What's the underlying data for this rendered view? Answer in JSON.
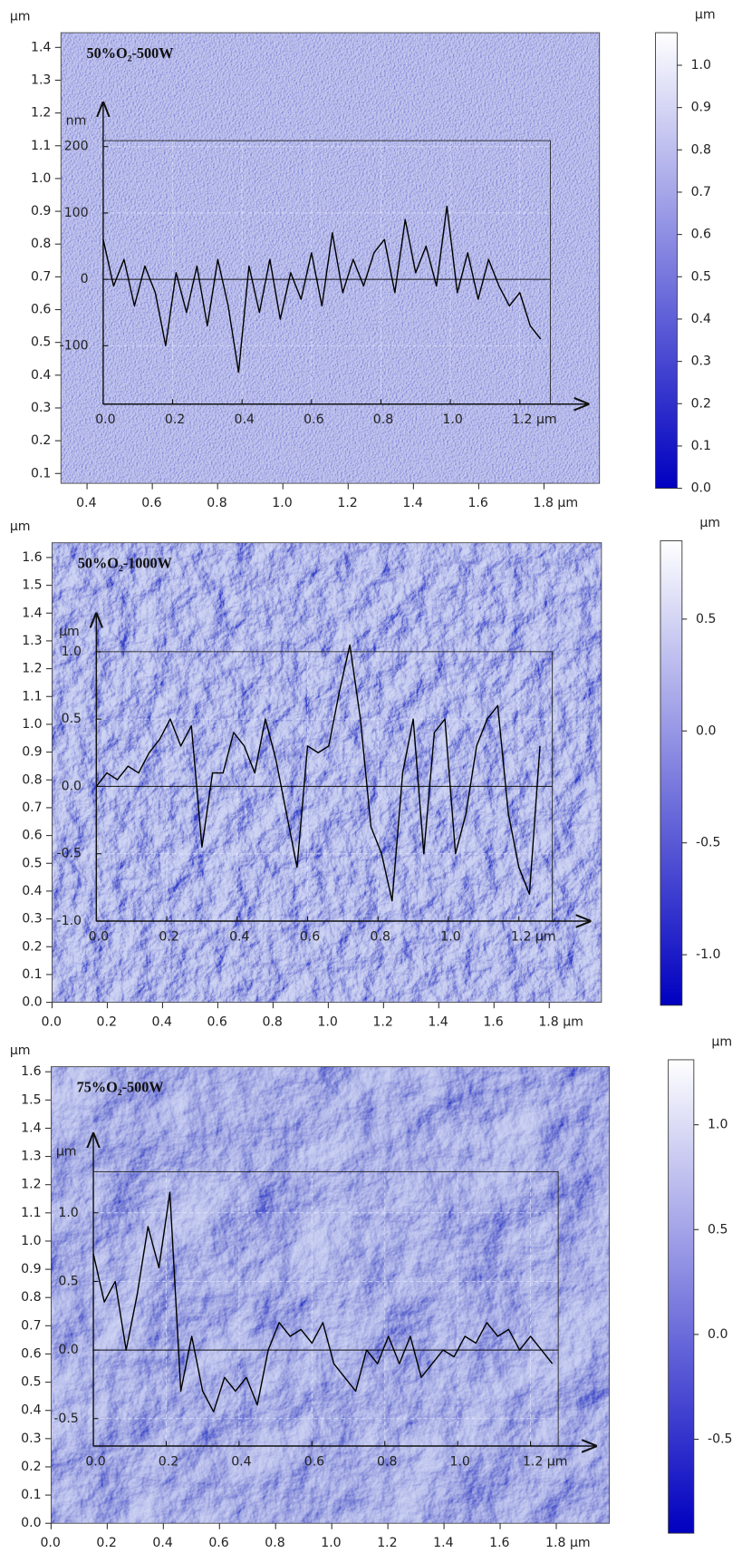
{
  "chart_data": [
    {
      "type": "line",
      "title": "50%O₂-500W",
      "y_label": "nm",
      "color": "#000000",
      "grid": true,
      "x": [
        0,
        0.03,
        0.06,
        0.09,
        0.12,
        0.15,
        0.18,
        0.21,
        0.24,
        0.27,
        0.3,
        0.33,
        0.36,
        0.39,
        0.42,
        0.45,
        0.48,
        0.51,
        0.54,
        0.57,
        0.6,
        0.63,
        0.66,
        0.69,
        0.72,
        0.75,
        0.78,
        0.81,
        0.84,
        0.87,
        0.9,
        0.93,
        0.96,
        0.99,
        1.02,
        1.05,
        1.08,
        1.11,
        1.14,
        1.17,
        1.2,
        1.23,
        1.26
      ],
      "values": [
        60,
        -10,
        30,
        -40,
        20,
        -20,
        -100,
        10,
        -50,
        20,
        -70,
        30,
        -40,
        -140,
        20,
        -50,
        30,
        -60,
        10,
        -30,
        40,
        -40,
        70,
        -20,
        30,
        -10,
        40,
        60,
        -20,
        90,
        10,
        50,
        -10,
        110,
        -20,
        40,
        -30,
        30,
        -10,
        -40,
        -20,
        -70,
        -90
      ],
      "xlim": [
        0,
        1.288
      ],
      "ylim": [
        -188,
        209
      ],
      "xticks": [
        {
          "value": 0,
          "label": "0.0"
        },
        0.2,
        0.4,
        0.6,
        0.8,
        {
          "value": 1,
          "label": "1.0"
        },
        {
          "value": 1.2,
          "label": "1.2 µm"
        }
      ],
      "yticks": [
        200,
        100,
        0,
        -100
      ],
      "image": {
        "y_label": "µm",
        "xlim": [
          0.32,
          1.97
        ],
        "ylim": [
          0.07,
          1.445
        ],
        "xticks": [
          0.4,
          0.6,
          0.8,
          {
            "value": 1,
            "label": "1.0"
          },
          1.2,
          1.4,
          1.6,
          {
            "value": 1.8,
            "label": "1.8 µm"
          }
        ],
        "yticks": [
          0.1,
          0.2,
          0.3,
          0.4,
          0.5,
          0.6,
          0.7,
          0.8,
          0.9,
          {
            "value": 1,
            "label": "1.0"
          },
          1.1,
          1.2,
          1.3,
          1.4
        ]
      },
      "colorbar": {
        "label": "µm",
        "colors": [
          "#0000c0",
          "#ffffff"
        ],
        "ylim": [
          0,
          1.077
        ],
        "yticks": [
          {
            "value": 0,
            "label": "0.0"
          },
          0.1,
          0.2,
          0.3,
          0.4,
          0.5,
          0.6,
          0.7,
          0.8,
          0.9,
          {
            "value": 1,
            "label": "1.0"
          }
        ]
      }
    },
    {
      "type": "line",
      "title": "50%O₂-1000W",
      "y_label": "µm",
      "color": "#000000",
      "grid": true,
      "x": [
        0,
        0.03,
        0.06,
        0.09,
        0.12,
        0.15,
        0.18,
        0.21,
        0.24,
        0.27,
        0.3,
        0.33,
        0.36,
        0.39,
        0.42,
        0.45,
        0.48,
        0.51,
        0.54,
        0.57,
        0.6,
        0.63,
        0.66,
        0.69,
        0.72,
        0.75,
        0.78,
        0.81,
        0.84,
        0.87,
        0.9,
        0.93,
        0.96,
        0.99,
        1.02,
        1.05,
        1.08,
        1.11,
        1.14,
        1.17,
        1.2,
        1.23,
        1.26
      ],
      "values": [
        0,
        0.1,
        0.05,
        0.15,
        0.1,
        0.25,
        0.35,
        0.5,
        0.3,
        0.45,
        -0.45,
        0.1,
        0.1,
        0.4,
        0.3,
        0.1,
        0.5,
        0.2,
        -0.2,
        -0.6,
        0.3,
        0.25,
        0.3,
        0.7,
        1.05,
        0.5,
        -0.3,
        -0.5,
        -0.85,
        0.1,
        0.5,
        -0.5,
        0.4,
        0.5,
        -0.5,
        -0.2,
        0.3,
        0.5,
        0.6,
        -0.2,
        -0.6,
        -0.8,
        0.3
      ],
      "xlim": [
        0,
        1.295
      ],
      "ylim": [
        -1,
        1
      ],
      "xticks": [
        {
          "value": 0,
          "label": "0.0"
        },
        0.2,
        0.4,
        0.6,
        0.8,
        {
          "value": 1,
          "label": "1.0"
        },
        {
          "value": 1.2,
          "label": "1.2 µm"
        }
      ],
      "yticks": [
        {
          "value": 1,
          "label": "1.0"
        },
        0.5,
        {
          "value": 0,
          "label": "0.0"
        },
        -0.5,
        {
          "value": -1,
          "label": "-1.0"
        }
      ],
      "image": {
        "y_label": "µm",
        "xlim": [
          0,
          1.989
        ],
        "ylim": [
          0,
          1.653
        ],
        "xticks": [
          {
            "value": 0,
            "label": "0.0"
          },
          0.2,
          0.4,
          0.6,
          0.8,
          {
            "value": 1,
            "label": "1.0"
          },
          1.2,
          1.4,
          1.6,
          {
            "value": 1.8,
            "label": "1.8 µm"
          }
        ],
        "yticks": [
          {
            "value": 0,
            "label": "0.0"
          },
          0.1,
          0.2,
          0.3,
          0.4,
          0.5,
          0.6,
          0.7,
          0.8,
          0.9,
          {
            "value": 1,
            "label": "1.0"
          },
          1.1,
          1.2,
          1.3,
          1.4,
          1.5,
          1.6
        ]
      },
      "colorbar": {
        "label": "µm",
        "colors": [
          "#0000c0",
          "#ffffff"
        ],
        "ylim": [
          -1.226,
          0.85
        ],
        "yticks": [
          0.5,
          {
            "value": 0,
            "label": "0.0"
          },
          -0.5,
          {
            "value": -1,
            "label": "-1.0"
          }
        ]
      }
    },
    {
      "type": "line",
      "title": "75%O₂-500W",
      "y_label": "µm",
      "color": "#000000",
      "grid": true,
      "x": [
        0,
        0.03,
        0.06,
        0.09,
        0.12,
        0.15,
        0.18,
        0.21,
        0.24,
        0.27,
        0.3,
        0.33,
        0.36,
        0.39,
        0.42,
        0.45,
        0.48,
        0.51,
        0.54,
        0.57,
        0.6,
        0.63,
        0.66,
        0.69,
        0.72,
        0.75,
        0.78,
        0.81,
        0.84,
        0.87,
        0.9,
        0.93,
        0.96,
        0.99,
        1.02,
        1.05,
        1.08,
        1.11,
        1.14,
        1.17,
        1.2,
        1.23,
        1.26
      ],
      "values": [
        0.7,
        0.35,
        0.5,
        0,
        0.4,
        0.9,
        0.6,
        1.15,
        -0.3,
        0.1,
        -0.3,
        -0.45,
        -0.2,
        -0.3,
        -0.2,
        -0.4,
        0,
        0.2,
        0.1,
        0.15,
        0.05,
        0.2,
        -0.1,
        -0.2,
        -0.3,
        0,
        -0.1,
        0.1,
        -0.1,
        0.1,
        -0.2,
        -0.1,
        0,
        -0.05,
        0.1,
        0.05,
        0.2,
        0.1,
        0.15,
        0,
        0.1,
        0,
        -0.1
      ],
      "xlim": [
        0,
        1.276
      ],
      "ylim": [
        -0.7,
        1.3
      ],
      "xticks": [
        {
          "value": 0,
          "label": "0.0"
        },
        0.2,
        0.4,
        0.6,
        0.8,
        {
          "value": 1,
          "label": "1.0"
        },
        {
          "value": 1.2,
          "label": "1.2 µm"
        }
      ],
      "yticks": [
        {
          "value": 1,
          "label": "1.0"
        },
        0.5,
        {
          "value": 0,
          "label": "0.0"
        },
        -0.5
      ],
      "image": {
        "y_label": "µm",
        "xlim": [
          0,
          1.989
        ],
        "ylim": [
          0,
          1.618
        ],
        "xticks": [
          {
            "value": 0,
            "label": "0.0"
          },
          0.2,
          0.4,
          0.6,
          0.8,
          {
            "value": 1,
            "label": "1.0"
          },
          1.2,
          1.4,
          1.6,
          {
            "value": 1.8,
            "label": "1.8 µm"
          }
        ],
        "yticks": [
          {
            "value": 0,
            "label": "0.0"
          },
          0.1,
          0.2,
          0.3,
          0.4,
          0.5,
          0.6,
          0.7,
          0.8,
          0.9,
          {
            "value": 1,
            "label": "1.0"
          },
          1.1,
          1.2,
          1.3,
          1.4,
          1.5,
          1.6
        ]
      },
      "colorbar": {
        "label": "µm",
        "colors": [
          "#0000c0",
          "#ffffff"
        ],
        "ylim": [
          -0.948,
          1.31
        ],
        "yticks": [
          {
            "value": 1,
            "label": "1.0"
          },
          0.5,
          {
            "value": 0,
            "label": "0.0"
          },
          -0.5
        ]
      }
    }
  ]
}
